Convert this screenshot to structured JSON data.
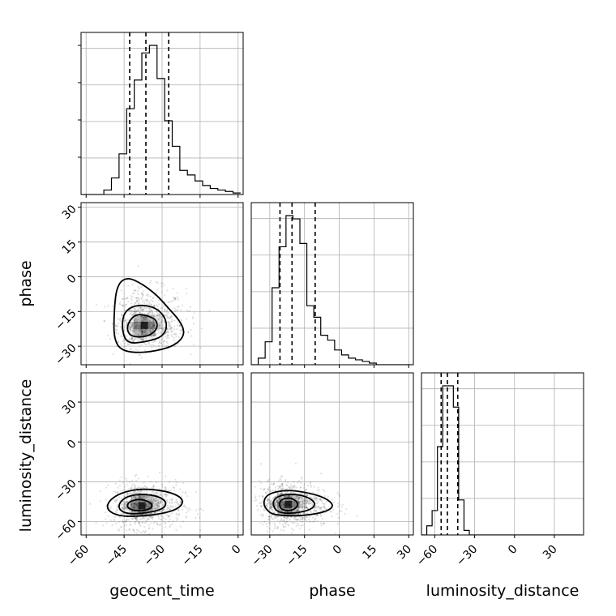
{
  "chart_data": {
    "type": "corner",
    "parameters": [
      "geocent_time",
      "phase",
      "luminosity_distance"
    ],
    "axis_labels": {
      "geocent_time": "geocent_time",
      "phase": "phase",
      "luminosity_distance": "luminosity_distance"
    },
    "ranges": {
      "geocent_time": [
        -62,
        2
      ],
      "phase": [
        -38,
        32
      ],
      "luminosity_distance": [
        -70,
        52
      ]
    },
    "ticks": {
      "geocent_time": [
        -60,
        -45,
        -30,
        -15,
        0
      ],
      "phase": [
        -30,
        -15,
        0,
        15,
        30
      ],
      "luminosity_distance": [
        -60,
        -30,
        0,
        30
      ]
    },
    "tick_labels": {
      "geocent_time": [
        "−60",
        "−45",
        "−30",
        "−15",
        "0"
      ],
      "phase": [
        "−30",
        "−15",
        "0",
        "15",
        "30"
      ],
      "luminosity_distance": [
        "−60",
        "−30",
        "0",
        "30"
      ]
    },
    "histograms": {
      "geocent_time": {
        "bin_edges": [
          -62,
          -59,
          -56,
          -53,
          -50,
          -47,
          -44,
          -41,
          -38,
          -35,
          -32,
          -29,
          -26,
          -23,
          -20,
          -17,
          -14,
          -11,
          -8,
          -5,
          -2,
          1
        ],
        "counts": [
          0,
          0,
          0,
          3,
          11,
          27,
          57,
          76,
          94,
          99,
          77,
          49,
          32,
          16,
          13,
          9,
          6,
          4,
          3,
          2,
          1
        ],
        "quantiles": [
          -42.8,
          -36.4,
          -27.4
        ]
      },
      "phase": {
        "bin_edges": [
          -38,
          -35,
          -32,
          -29,
          -26,
          -23,
          -20,
          -17,
          -14,
          -11,
          -8,
          -5,
          -2,
          1,
          4,
          7,
          10,
          13,
          16,
          19,
          22,
          25,
          28,
          31
        ],
        "counts": [
          0,
          4,
          14,
          47,
          72,
          91,
          89,
          74,
          36,
          29,
          18,
          15,
          9,
          6,
          4,
          3,
          2,
          1,
          0,
          0,
          0,
          0,
          0
        ],
        "quantiles": [
          -25.6,
          -20.4,
          -10.4
        ]
      },
      "luminosity_distance": {
        "bin_edges": [
          -70,
          -66,
          -62,
          -58,
          -54,
          -50,
          -46,
          -42,
          -38,
          -34,
          -30,
          -26,
          -22,
          -18,
          -14,
          -10,
          -6,
          -2,
          2,
          6,
          10,
          14,
          18,
          22,
          26,
          30,
          34,
          38,
          42,
          46,
          50
        ],
        "counts": [
          0,
          6,
          16,
          58,
          98,
          98,
          84,
          23,
          3,
          0,
          0,
          0,
          0,
          0,
          0,
          0,
          0,
          0,
          0,
          0,
          0,
          0,
          0,
          0,
          0,
          0,
          0,
          0,
          0,
          0
        ],
        "quantiles": [
          -55.2,
          -50.5,
          -42.7
        ]
      }
    },
    "joint": {
      "phase_vs_geocent_time": {
        "center": [
          -37,
          -21
        ],
        "contours": [
          [
            [
              -42,
              -26
            ],
            [
              -36,
              -26
            ],
            [
              -32,
              -23
            ],
            [
              -32,
              -19
            ],
            [
              -35,
              -17
            ],
            [
              -40,
              -16
            ],
            [
              -43,
              -19
            ],
            [
              -44,
              -23
            ]
          ],
          [
            [
              -44,
              -29
            ],
            [
              -36,
              -28
            ],
            [
              -30,
              -26
            ],
            [
              -28,
              -22
            ],
            [
              -29,
              -17
            ],
            [
              -33,
              -13
            ],
            [
              -40,
              -12
            ],
            [
              -45,
              -15
            ],
            [
              -46,
              -22
            ]
          ],
          [
            [
              -46,
              -32
            ],
            [
              -38,
              -33
            ],
            [
              -28,
              -31
            ],
            [
              -23,
              -28
            ],
            [
              -21,
              -24
            ],
            [
              -23,
              -19
            ],
            [
              -28,
              -13
            ],
            [
              -32,
              -8
            ],
            [
              -38,
              -3
            ],
            [
              -44,
              0
            ],
            [
              -48,
              -4
            ],
            [
              -49,
              -16
            ],
            [
              -49,
              -27
            ]
          ]
        ]
      },
      "luminosity_distance_vs_geocent_time": {
        "center": [
          -38,
          -48
        ],
        "contours": [
          [
            [
              -43,
              -51
            ],
            [
              -38,
              -52
            ],
            [
              -34,
              -50
            ],
            [
              -34,
              -46
            ],
            [
              -38,
              -43
            ],
            [
              -42,
              -44
            ],
            [
              -44,
              -47
            ]
          ],
          [
            [
              -44,
              -54
            ],
            [
              -38,
              -54
            ],
            [
              -30,
              -51
            ],
            [
              -28,
              -46
            ],
            [
              -31,
              -41
            ],
            [
              -38,
              -39
            ],
            [
              -44,
              -41
            ],
            [
              -47,
              -46
            ],
            [
              -47,
              -51
            ]
          ],
          [
            [
              -47,
              -56
            ],
            [
              -38,
              -56
            ],
            [
              -27,
              -53
            ],
            [
              -22,
              -48
            ],
            [
              -22,
              -42
            ],
            [
              -28,
              -37
            ],
            [
              -38,
              -35
            ],
            [
              -46,
              -38
            ],
            [
              -51,
              -44
            ],
            [
              -52,
              -51
            ]
          ]
        ]
      },
      "luminosity_distance_vs_phase": {
        "center": [
          -22,
          -47
        ],
        "contours": [
          [
            [
              -25,
              -51
            ],
            [
              -21,
              -52
            ],
            [
              -18,
              -49
            ],
            [
              -18,
              -45
            ],
            [
              -21,
              -42
            ],
            [
              -25,
              -43
            ],
            [
              -26,
              -47
            ]
          ],
          [
            [
              -27,
              -53
            ],
            [
              -20,
              -54
            ],
            [
              -12,
              -51
            ],
            [
              -10,
              -46
            ],
            [
              -14,
              -41
            ],
            [
              -21,
              -39
            ],
            [
              -27,
              -41
            ],
            [
              -29,
              -46
            ]
          ],
          [
            [
              -28,
              -55
            ],
            [
              -18,
              -56
            ],
            [
              -6,
              -53
            ],
            [
              -2,
              -48
            ],
            [
              -6,
              -42
            ],
            [
              -14,
              -38
            ],
            [
              -23,
              -36
            ],
            [
              -31,
              -39
            ],
            [
              -33,
              -46
            ],
            [
              -31,
              -52
            ]
          ]
        ]
      }
    },
    "grid": true,
    "quantile_lines": "dashed"
  }
}
